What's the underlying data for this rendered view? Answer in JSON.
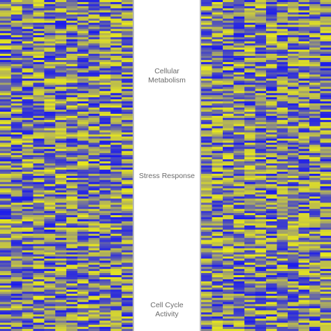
{
  "chart_data": {
    "type": "heatmap",
    "title": "",
    "colors": {
      "low": "#1a1aee",
      "mid": "#8a8a86",
      "high": "#e8e81c"
    },
    "panels": [
      {
        "name": "",
        "columns": 12,
        "rows": 160,
        "seed": 7
      },
      {
        "name": "",
        "columns": 12,
        "rows": 160,
        "seed": 19
      }
    ],
    "row_groups": [
      {
        "label_line1": "Cellular",
        "label_line2": "Metabolism"
      },
      {
        "label_line1": "Stress Response",
        "label_line2": ""
      },
      {
        "label_line1": "Cell Cycle",
        "label_line2": "Activity"
      }
    ],
    "legend": "none",
    "grid": false
  }
}
